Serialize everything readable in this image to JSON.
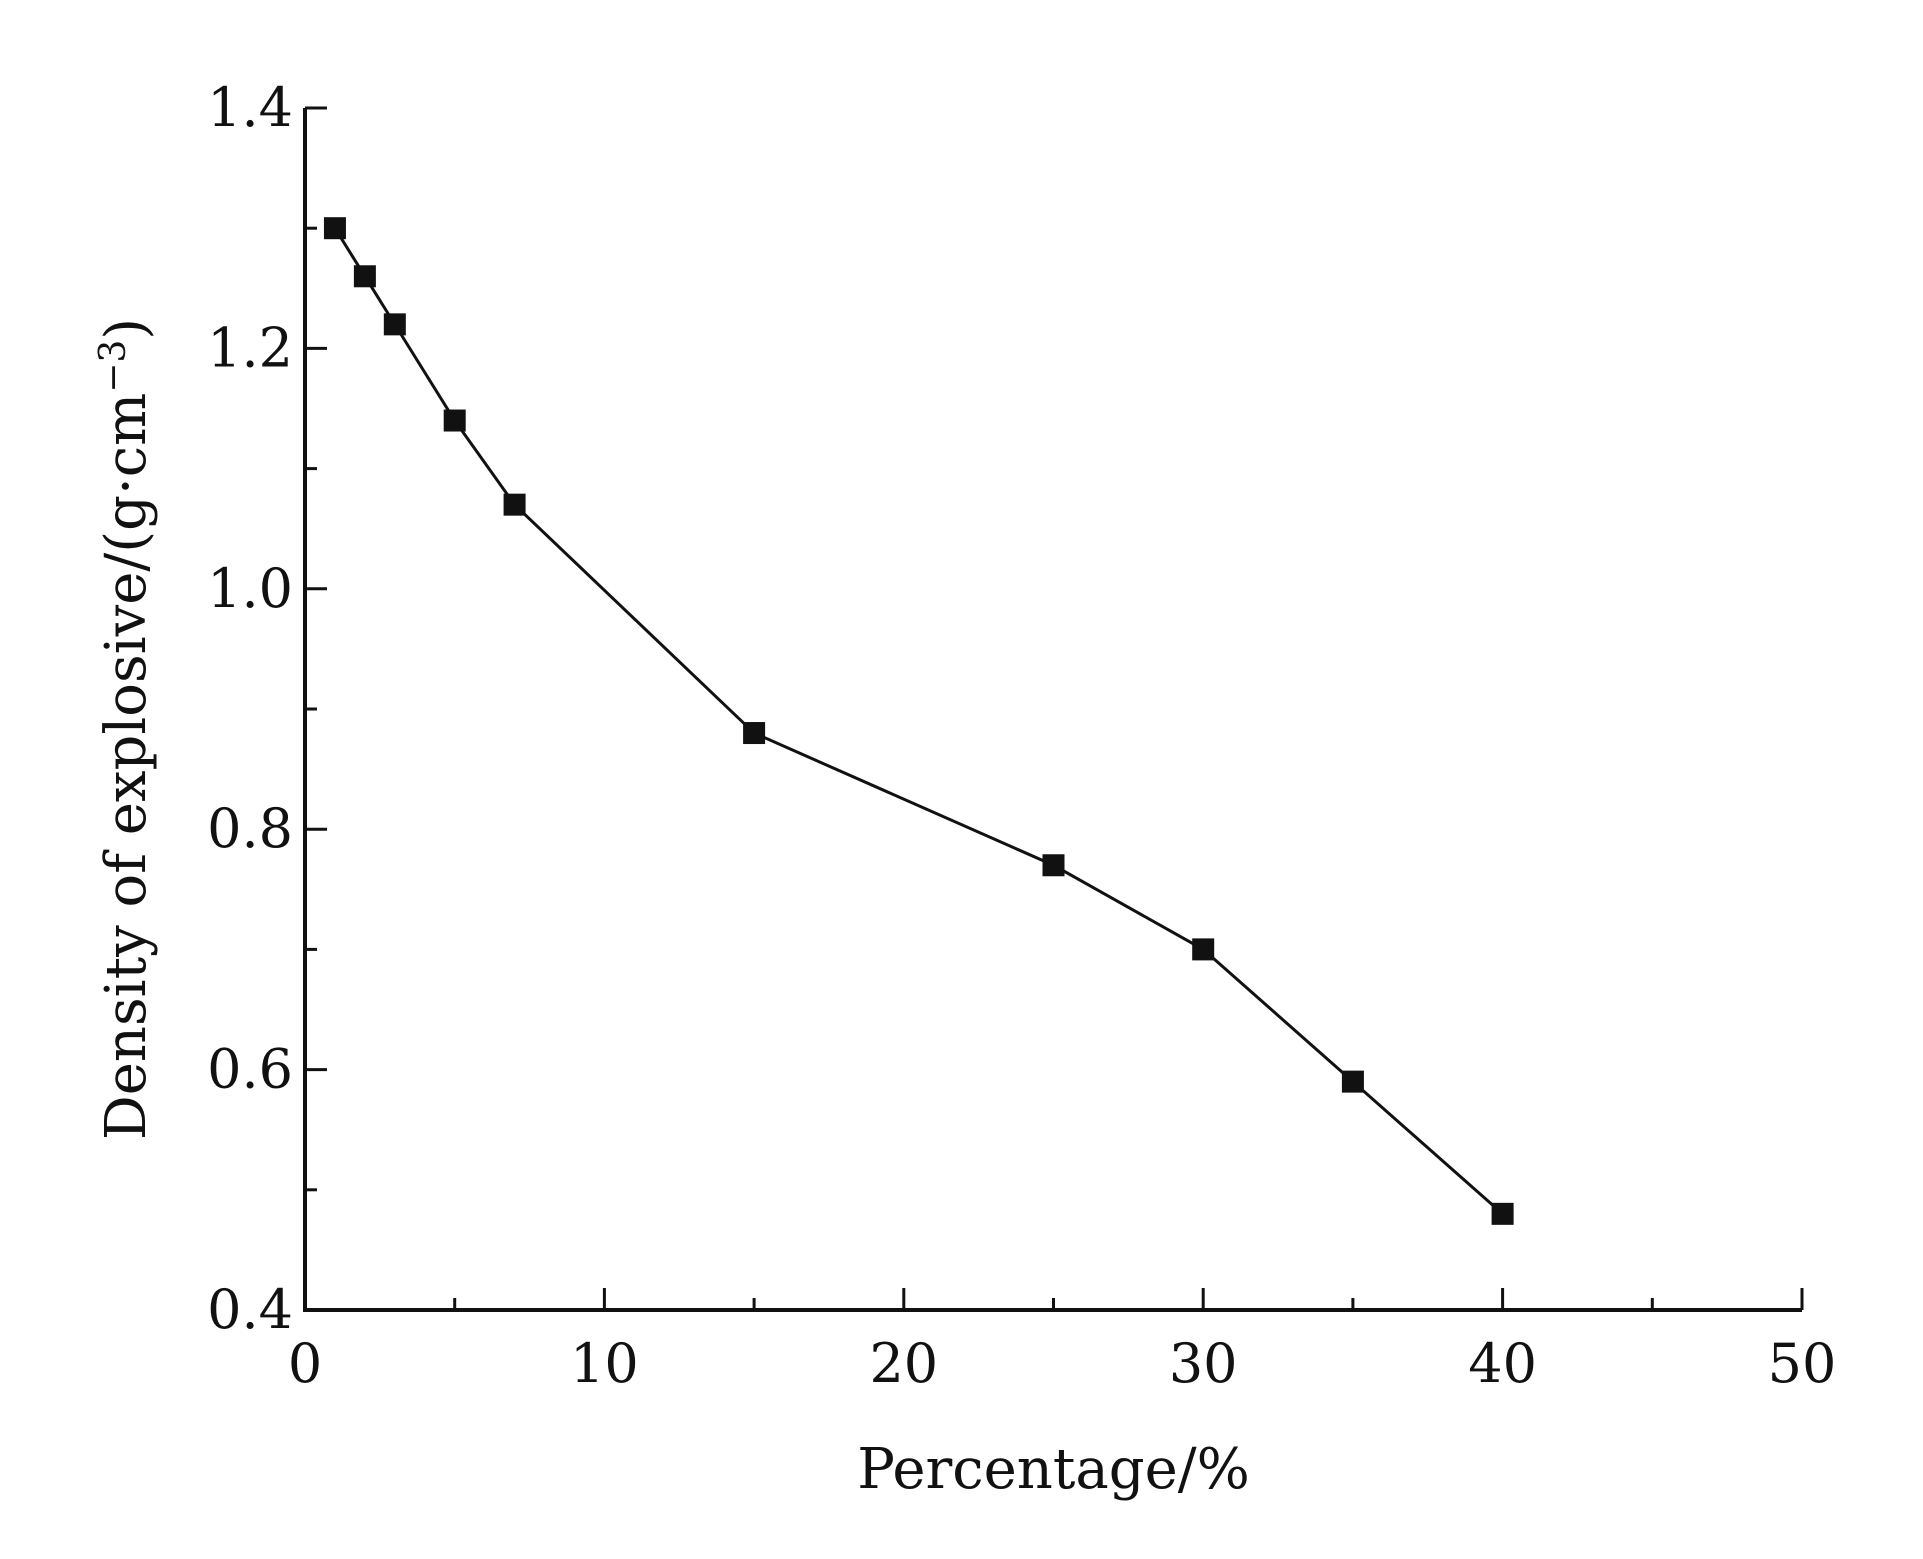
{
  "chart_data": {
    "type": "line",
    "title": "",
    "xlabel": "Percentage/%",
    "ylabel_parts": {
      "base": "Density of explosive/(g·cm",
      "sup": "−3",
      "close": ")"
    },
    "xlim": [
      0,
      50
    ],
    "ylim": [
      0.4,
      1.4
    ],
    "x_ticks": [
      0,
      10,
      20,
      30,
      40,
      50
    ],
    "x_tick_labels": [
      "0",
      "10",
      "20",
      "30",
      "40",
      "50"
    ],
    "x_minor_ticks": [
      5,
      15,
      25,
      35,
      45
    ],
    "y_ticks": [
      0.4,
      0.6,
      0.8,
      1.0,
      1.2,
      1.4
    ],
    "y_tick_labels": [
      "0.4",
      "0.6",
      "0.8",
      "1.0",
      "1.2",
      "1.4"
    ],
    "y_minor_ticks": [
      0.5,
      0.7,
      0.9,
      1.1,
      1.3
    ],
    "grid": false,
    "marker": "square",
    "color": "#111111",
    "series": [
      {
        "x": [
          1,
          2,
          3,
          5,
          7,
          15,
          25,
          30,
          35,
          40
        ],
        "y": [
          1.3,
          1.26,
          1.22,
          1.14,
          1.07,
          0.88,
          0.77,
          0.7,
          0.59,
          0.48
        ]
      }
    ]
  }
}
